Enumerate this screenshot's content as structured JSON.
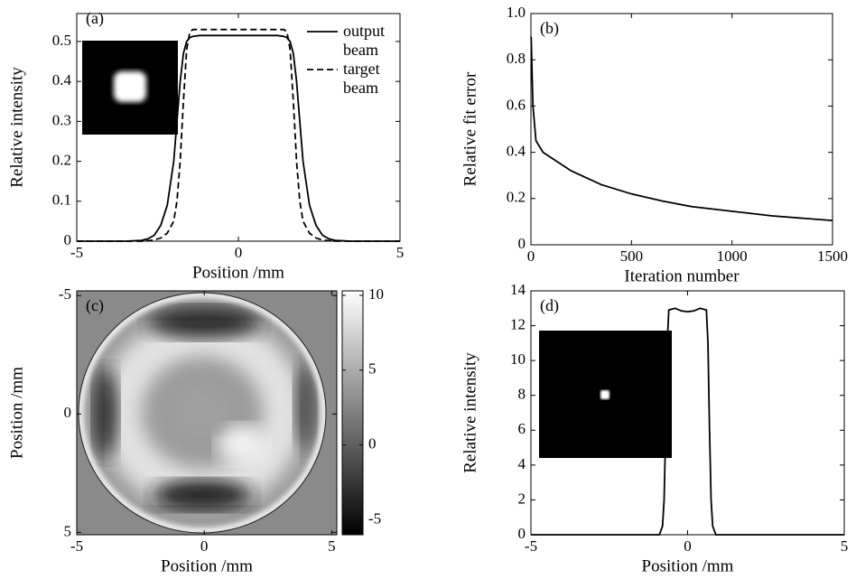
{
  "chart_data": [
    {
      "type": "line",
      "label": "(a)",
      "xlabel": "Position /mm",
      "ylabel": "Relative intensity",
      "xlim": [
        -5,
        5
      ],
      "xticks": [
        -5,
        0,
        5
      ],
      "ylim": [
        0,
        0.57
      ],
      "yticks": [
        0,
        0.1,
        0.2,
        0.3,
        0.4,
        0.5
      ],
      "x": [
        -5,
        -3.5,
        -3,
        -2.8,
        -2.6,
        -2.4,
        -2.2,
        -2.0,
        -1.9,
        -1.8,
        -1.7,
        -1.6,
        -1.5,
        -1.4,
        -1.2,
        -1.0,
        -0.5,
        0,
        0.5,
        1.0,
        1.2,
        1.4,
        1.5,
        1.6,
        1.7,
        1.8,
        1.9,
        2.0,
        2.2,
        2.4,
        2.6,
        2.8,
        3,
        3.5,
        5
      ],
      "series": [
        {
          "name": "output beam",
          "color": "#000000",
          "style": "solid",
          "values": [
            0,
            0,
            0.002,
            0.006,
            0.015,
            0.04,
            0.09,
            0.2,
            0.3,
            0.4,
            0.47,
            0.5,
            0.51,
            0.513,
            0.515,
            0.515,
            0.515,
            0.515,
            0.515,
            0.515,
            0.515,
            0.513,
            0.51,
            0.5,
            0.47,
            0.4,
            0.3,
            0.2,
            0.09,
            0.04,
            0.015,
            0.006,
            0.002,
            0,
            0
          ]
        },
        {
          "name": "target beam",
          "color": "#000000",
          "style": "dashed",
          "values": [
            0,
            0,
            0,
            0.001,
            0.003,
            0.008,
            0.02,
            0.05,
            0.1,
            0.2,
            0.35,
            0.48,
            0.525,
            0.53,
            0.53,
            0.53,
            0.53,
            0.53,
            0.53,
            0.53,
            0.53,
            0.53,
            0.525,
            0.48,
            0.35,
            0.2,
            0.1,
            0.05,
            0.02,
            0.008,
            0.003,
            0.001,
            0,
            0,
            0
          ]
        }
      ]
    },
    {
      "type": "line",
      "label": "(b)",
      "xlabel": "Iteration number",
      "ylabel": "Relative fit error",
      "xlim": [
        0,
        1500
      ],
      "xticks": [
        0,
        500,
        1000,
        1500
      ],
      "ylim": [
        0,
        1
      ],
      "yticks": [
        0,
        0.2,
        0.4,
        0.6,
        0.8,
        {
          "value": 1,
          "label": "1.0"
        }
      ],
      "x": [
        1,
        10,
        25,
        60,
        130,
        200,
        350,
        500,
        650,
        800,
        1000,
        1200,
        1500
      ],
      "series": [
        {
          "color": "#000000",
          "style": "solid",
          "values": [
            0.9,
            0.6,
            0.45,
            0.4,
            0.36,
            0.32,
            0.26,
            0.22,
            0.19,
            0.165,
            0.145,
            0.125,
            0.105
          ]
        }
      ]
    },
    {
      "type": "image",
      "label": "(c)",
      "xlabel": "Position /mm",
      "ylabel": "Position /mm",
      "xlim": [
        -5,
        5.2
      ],
      "xticks": [
        -5,
        0,
        5
      ],
      "ylim": [
        -5.2,
        5.1
      ],
      "yticks": [
        -5,
        0,
        5
      ],
      "y_inverted": true,
      "colorbar": {
        "lim": [
          -6,
          10.3
        ],
        "ticks": [
          -5,
          0,
          5,
          10
        ]
      }
    },
    {
      "type": "line",
      "label": "(d)",
      "xlabel": "Position /mm",
      "ylabel": "Relative intensity",
      "xlim": [
        -5,
        5
      ],
      "xticks": [
        -5,
        0,
        5
      ],
      "ylim": [
        0,
        14
      ],
      "yticks": [
        0,
        2,
        4,
        6,
        8,
        10,
        12,
        14
      ],
      "x": [
        -5,
        -0.9,
        -0.8,
        -0.75,
        -0.7,
        -0.65,
        -0.6,
        -0.4,
        -0.2,
        0,
        0.2,
        0.4,
        0.6,
        0.65,
        0.7,
        0.75,
        0.8,
        0.9,
        5
      ],
      "series": [
        {
          "color": "#000000",
          "style": "solid",
          "values": [
            0,
            0,
            0.5,
            2,
            6,
            11,
            12.9,
            13,
            12.85,
            12.8,
            12.85,
            13,
            12.9,
            11,
            6,
            2,
            0.5,
            0,
            0
          ]
        }
      ]
    }
  ]
}
